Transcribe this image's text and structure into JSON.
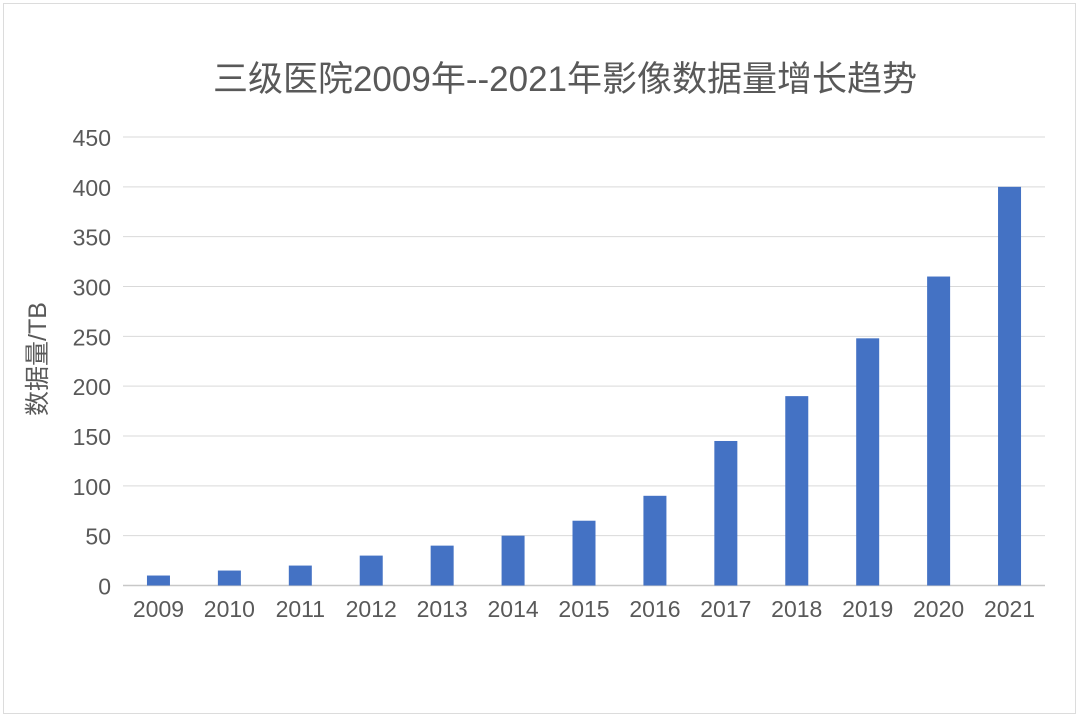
{
  "page": {
    "background_color": "#ffffff",
    "frame_border_color": "#dcdcdc"
  },
  "chart_data": {
    "type": "bar",
    "title": "三级医院2009年--2021年影像数据量增长趋势",
    "xlabel": "",
    "ylabel": "数据量/TB",
    "categories": [
      "2009",
      "2010",
      "2011",
      "2012",
      "2013",
      "2014",
      "2015",
      "2016",
      "2017",
      "2018",
      "2019",
      "2020",
      "2021"
    ],
    "values": [
      10,
      15,
      20,
      30,
      40,
      50,
      65,
      90,
      145,
      190,
      248,
      310,
      400
    ],
    "ylim": [
      0,
      450
    ],
    "ytick_step": 50,
    "yticks": [
      0,
      50,
      100,
      150,
      200,
      250,
      300,
      350,
      400,
      450
    ],
    "grid": true,
    "legend_position": "none",
    "bar_color": "#4472C4",
    "gridline_color": "#D9D9D9",
    "axis_line_color": "#C8C8C8",
    "text_color": "#595959"
  }
}
